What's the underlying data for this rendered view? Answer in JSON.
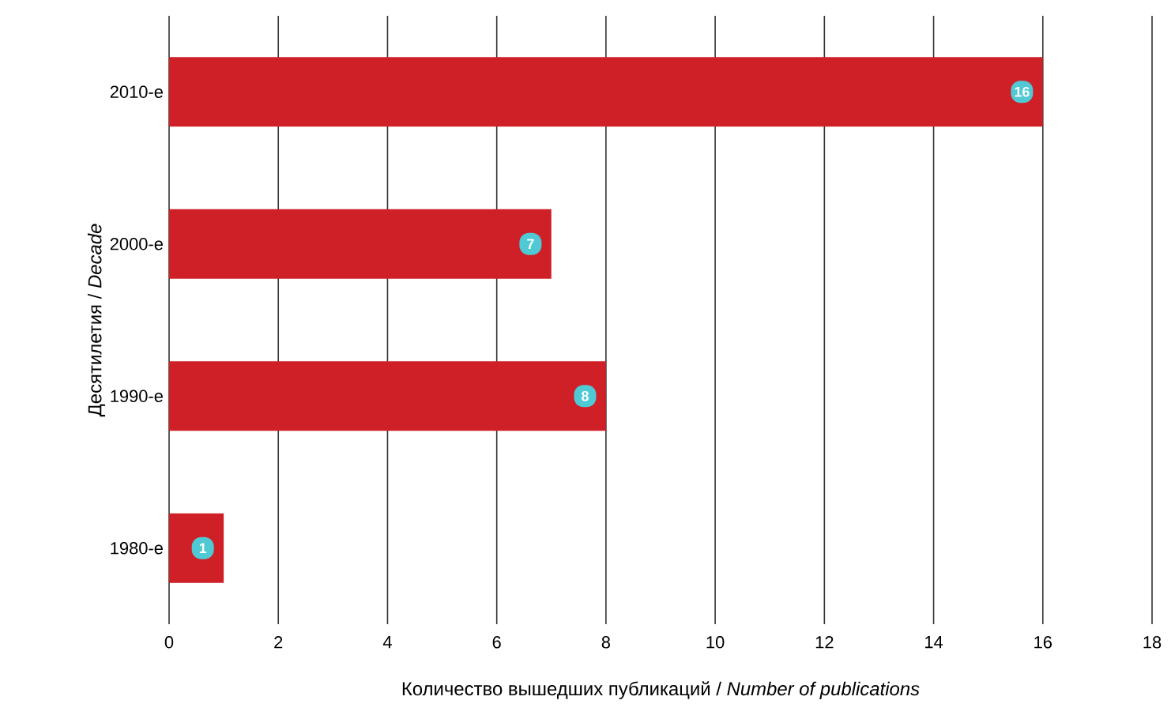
{
  "chart_data": {
    "type": "bar",
    "orientation": "horizontal",
    "xlabel": "Количество вышедших публикаций / *Number of publications*",
    "ylabel": "Десятилетия / *Decade*",
    "categories": [
      "2010-е",
      "2000-е",
      "1990-е",
      "1980-е"
    ],
    "values": [
      16,
      7,
      8,
      1
    ],
    "value_labels": [
      "16",
      "7",
      "8",
      "1"
    ],
    "color": "#cf2027",
    "xlim": [
      0,
      18
    ],
    "xticks": [
      0,
      2,
      4,
      6,
      8,
      10,
      12,
      14,
      16,
      18
    ],
    "grid": "x"
  }
}
